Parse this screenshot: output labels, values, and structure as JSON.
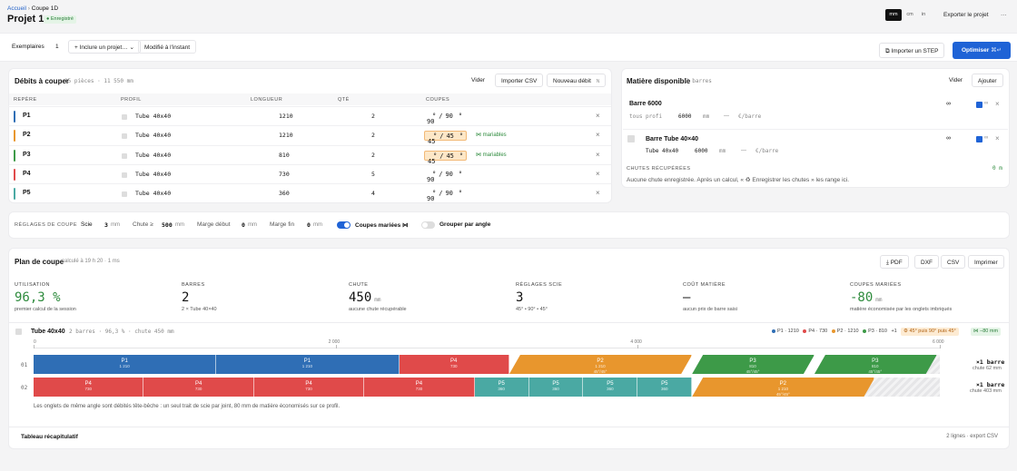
{
  "header": {
    "breadcrumb_home": "Accueil",
    "breadcrumb_sep": "›",
    "breadcrumb_current": "Coupe 1D",
    "title": "Projet 1",
    "saved_badge": "Enregistré",
    "units": [
      "mm",
      "cm",
      "in"
    ],
    "export": "Exporter le projet",
    "more": "···"
  },
  "toolbar": {
    "copies_label": "Exemplaires",
    "copies_value": "1",
    "include": "+ Inclure un projet…",
    "modified": "Modifié à l'instant",
    "import_step": "Importer un STEP",
    "optimise": "Optimiser",
    "optimise_kbd": "⌘↵"
  },
  "cuts": {
    "title": "Débits à couper",
    "summary": "15 pièces · 11 550 mm",
    "clear": "Vider",
    "import_csv": "Importer CSV",
    "new": "Nouveau débit",
    "new_kbd": "N",
    "columns": [
      "REPÈRE",
      "PROFIL",
      "LONGUEUR",
      "QTÉ",
      "COUPES"
    ],
    "rows": [
      {
        "ref": "P1",
        "color": "#2f6eb5",
        "profile": "Tube 40x40",
        "length": "1210",
        "qty": "2",
        "a1": "90",
        "a2": "90",
        "deg1": "°",
        "sep": "/",
        "deg2": "°",
        "match": "",
        "hl": false
      },
      {
        "ref": "P2",
        "color": "#e8962d",
        "profile": "Tube 40x40",
        "length": "1210",
        "qty": "2",
        "a1": "45",
        "a2": "45",
        "deg1": "°",
        "sep": "/",
        "deg2": "°",
        "match": "⋈ mariables",
        "hl": true
      },
      {
        "ref": "P3",
        "color": "#3d9a48",
        "profile": "Tube 40x40",
        "length": "810",
        "qty": "2",
        "a1": "45",
        "a2": "45",
        "deg1": "°",
        "sep": "/",
        "deg2": "°",
        "match": "⋈ mariables",
        "hl": true
      },
      {
        "ref": "P4",
        "color": "#e04a4a",
        "profile": "Tube 40x40",
        "length": "730",
        "qty": "5",
        "a1": "90",
        "a2": "90",
        "deg1": "°",
        "sep": "/",
        "deg2": "°",
        "match": "",
        "hl": false
      },
      {
        "ref": "P5",
        "color": "#4aa9a3",
        "profile": "Tube 40x40",
        "length": "360",
        "qty": "4",
        "a1": "90",
        "a2": "90",
        "deg1": "°",
        "sep": "/",
        "deg2": "°",
        "match": "",
        "hl": false
      }
    ],
    "remove": "×"
  },
  "stock": {
    "title": "Matière disponible",
    "count": "2 barres",
    "clear": "Vider",
    "add": "Ajouter",
    "bar1": {
      "name": "Barre 6000",
      "profile": "tous profi",
      "length": "6000",
      "unit": "mm",
      "dash": "—",
      "price": "€/barre"
    },
    "bar2": {
      "name": "Barre Tube 40×40",
      "profile": "Tube 40x40",
      "length": "6000",
      "unit": "mm",
      "dash": "—",
      "price": "€/barre"
    },
    "infinity": "∞",
    "remove": "×",
    "offcuts_title": "CHUTES RÉCUPÉRÉES",
    "offcuts_count": "0 m",
    "offcuts_text": "Aucune chute enregistrée. Après un calcul, « ♻ Enregistrer les chutes » les range ici."
  },
  "settings": {
    "title": "RÉGLAGES DE COUPE",
    "saw_label": "Scie",
    "saw": "3",
    "unit": "mm",
    "offcut_label": "Chute ≥",
    "offcut": "500",
    "start_label": "Marge début",
    "start": "0",
    "end_label": "Marge fin",
    "end": "0",
    "married": "Coupes mariées ⋈",
    "group": "Grouper par angle"
  },
  "plan": {
    "title": "Plan de coupe",
    "calc": "calculé à 19 h 20 · 1 ms",
    "pdf": "PDF",
    "dxf": "DXF",
    "csv": "CSV",
    "print": "Imprimer",
    "stats": [
      {
        "label": "UTILISATION",
        "value": "96,3 %",
        "sub": "premier calcul de la session",
        "color": "#2e8b3d"
      },
      {
        "label": "BARRES",
        "value": "2",
        "sub": "2 × Tube 40×40",
        "color": "#111"
      },
      {
        "label": "CHUTE",
        "value": "450",
        "unit": "mm",
        "sub": "aucune chute récupérable",
        "color": "#111"
      },
      {
        "label": "RÉGLAGES SCIE",
        "value": "3",
        "sub": "45° • 90° • 45°",
        "color": "#111"
      },
      {
        "label": "COÛT MATIÈRE",
        "value": "—",
        "sub": "aucun prix de barre saisi",
        "color": "#111"
      },
      {
        "label": "COUPES MARIÉES",
        "value": "-80",
        "unit": "mm",
        "sub": "matière économisée par les onglets imbriqués",
        "color": "#2e8b3d"
      }
    ],
    "group": {
      "name": "Tube 40x40",
      "info": "2 barres · 96,3 % · chute 450 mm",
      "legend": [
        {
          "t": "P1 · 1210",
          "c": "#2f6eb5"
        },
        {
          "t": "P4 · 730",
          "c": "#e04a4a"
        },
        {
          "t": "P2 · 1210",
          "c": "#e8962d"
        },
        {
          "t": "P3 · 810",
          "c": "#3d9a48"
        }
      ],
      "legend_more": "+1",
      "saw_badge": "⚙ 45° puis 90° puis 45°",
      "saved_badge": "⋈ −80 mm",
      "ticks": [
        "0",
        "2 000",
        "4 000",
        "6 000"
      ],
      "bar1_label": "01",
      "bar2_label": "02",
      "bar1_count": "×1 barre",
      "bar1_offcut": "chute 62 mm",
      "bar2_count": "×1 barre",
      "bar2_offcut": "chute 403 mm",
      "bar1": [
        {
          "r": "P1",
          "l": "1 210",
          "len": 1210,
          "c": "#2f6eb5"
        },
        {
          "r": "P1",
          "l": "1 210",
          "len": 1210,
          "c": "#2f6eb5"
        },
        {
          "r": "P4",
          "l": "730",
          "len": 730,
          "c": "#e04a4a"
        },
        {
          "r": "P2",
          "l": "1 210",
          "a": "45°/45°",
          "len": 1210,
          "c": "#e8962d",
          "m": true
        },
        {
          "r": "P3",
          "l": "810",
          "a": "45°/45°",
          "len": 810,
          "c": "#3d9a48",
          "m": true
        },
        {
          "r": "P3",
          "l": "810",
          "a": "45°/45°",
          "len": 810,
          "c": "#3d9a48",
          "m": true
        }
      ],
      "bar2": [
        {
          "r": "P4",
          "l": "730",
          "len": 730,
          "c": "#e04a4a"
        },
        {
          "r": "P4",
          "l": "730",
          "len": 730,
          "c": "#e04a4a"
        },
        {
          "r": "P4",
          "l": "730",
          "len": 730,
          "c": "#e04a4a"
        },
        {
          "r": "P4",
          "l": "730",
          "len": 730,
          "c": "#e04a4a"
        },
        {
          "r": "P5",
          "l": "360",
          "len": 360,
          "c": "#4aa9a3"
        },
        {
          "r": "P5",
          "l": "360",
          "len": 360,
          "c": "#4aa9a3"
        },
        {
          "r": "P5",
          "l": "360",
          "len": 360,
          "c": "#4aa9a3"
        },
        {
          "r": "P5",
          "l": "360",
          "len": 360,
          "c": "#4aa9a3"
        },
        {
          "r": "P2",
          "l": "1 210",
          "a": "45°/45°",
          "len": 1210,
          "c": "#e8962d",
          "m": true
        }
      ],
      "note": "Les onglets de même angle sont débités tête-bêche : un seul trait de scie par joint, 80 mm de matière économisés sur ce profil."
    },
    "summary": "Tableau récapitulatif",
    "summary_info": "2 lignes · export CSV"
  }
}
